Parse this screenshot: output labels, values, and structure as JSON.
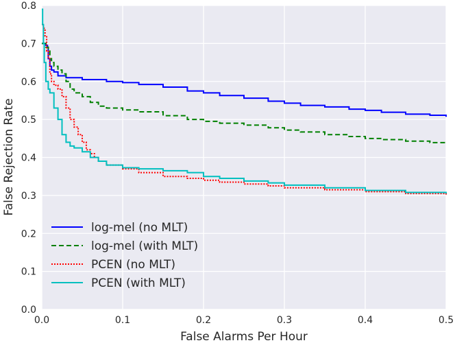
{
  "chart_data": {
    "type": "line",
    "title": "",
    "xlabel": "False Alarms Per Hour",
    "ylabel": "False Rejection Rate",
    "xlim": [
      0.0,
      0.5
    ],
    "ylim": [
      0.0,
      0.8
    ],
    "xticks": [
      "0.0",
      "0.1",
      "0.2",
      "0.3",
      "0.4",
      "0.5"
    ],
    "yticks": [
      "0.0",
      "0.1",
      "0.2",
      "0.3",
      "0.4",
      "0.5",
      "0.6",
      "0.7",
      "0.8"
    ],
    "grid": true,
    "legend_position": "bottom-left",
    "series": [
      {
        "name": "log-mel (no MLT)",
        "color": "#0000ff",
        "dash": "solid",
        "x": [
          0.0,
          0.005,
          0.007,
          0.008,
          0.01,
          0.012,
          0.015,
          0.02,
          0.03,
          0.05,
          0.08,
          0.1,
          0.12,
          0.15,
          0.18,
          0.2,
          0.22,
          0.25,
          0.28,
          0.3,
          0.32,
          0.35,
          0.38,
          0.4,
          0.42,
          0.45,
          0.48,
          0.5
        ],
        "y": [
          0.7,
          0.695,
          0.69,
          0.66,
          0.64,
          0.63,
          0.625,
          0.615,
          0.61,
          0.605,
          0.6,
          0.597,
          0.592,
          0.585,
          0.575,
          0.57,
          0.563,
          0.556,
          0.548,
          0.543,
          0.537,
          0.533,
          0.527,
          0.524,
          0.519,
          0.514,
          0.511,
          0.507
        ]
      },
      {
        "name": "log-mel (with MLT)",
        "color": "#008000",
        "dash": "dashed",
        "x": [
          0.0,
          0.005,
          0.008,
          0.01,
          0.012,
          0.015,
          0.02,
          0.025,
          0.03,
          0.035,
          0.04,
          0.05,
          0.06,
          0.07,
          0.08,
          0.1,
          0.12,
          0.15,
          0.18,
          0.2,
          0.22,
          0.25,
          0.28,
          0.3,
          0.32,
          0.35,
          0.38,
          0.4,
          0.42,
          0.45,
          0.48,
          0.5
        ],
        "y": [
          0.7,
          0.69,
          0.68,
          0.66,
          0.65,
          0.64,
          0.63,
          0.62,
          0.6,
          0.58,
          0.57,
          0.56,
          0.545,
          0.535,
          0.53,
          0.525,
          0.52,
          0.51,
          0.5,
          0.495,
          0.49,
          0.485,
          0.478,
          0.472,
          0.467,
          0.46,
          0.455,
          0.45,
          0.447,
          0.443,
          0.439,
          0.435
        ]
      },
      {
        "name": "PCEN (no MLT)",
        "color": "#ff0000",
        "dash": "dotted",
        "x": [
          0.0,
          0.002,
          0.004,
          0.006,
          0.008,
          0.01,
          0.012,
          0.015,
          0.02,
          0.025,
          0.03,
          0.035,
          0.04,
          0.045,
          0.05,
          0.055,
          0.06,
          0.065,
          0.07,
          0.08,
          0.1,
          0.12,
          0.15,
          0.18,
          0.2,
          0.22,
          0.25,
          0.28,
          0.3,
          0.35,
          0.4,
          0.45,
          0.5
        ],
        "y": [
          0.75,
          0.74,
          0.72,
          0.68,
          0.66,
          0.62,
          0.6,
          0.59,
          0.58,
          0.56,
          0.53,
          0.5,
          0.48,
          0.46,
          0.44,
          0.42,
          0.41,
          0.4,
          0.39,
          0.38,
          0.37,
          0.36,
          0.35,
          0.345,
          0.34,
          0.335,
          0.33,
          0.325,
          0.32,
          0.315,
          0.31,
          0.305,
          0.3
        ]
      },
      {
        "name": "PCEN (with MLT)",
        "color": "#00bfbf",
        "dash": "solid",
        "x": [
          0.0,
          0.001,
          0.002,
          0.003,
          0.005,
          0.008,
          0.01,
          0.015,
          0.02,
          0.025,
          0.03,
          0.035,
          0.04,
          0.05,
          0.06,
          0.07,
          0.08,
          0.1,
          0.12,
          0.15,
          0.18,
          0.2,
          0.22,
          0.25,
          0.28,
          0.3,
          0.35,
          0.4,
          0.45,
          0.5
        ],
        "y": [
          0.79,
          0.75,
          0.7,
          0.65,
          0.6,
          0.58,
          0.57,
          0.53,
          0.5,
          0.46,
          0.44,
          0.43,
          0.425,
          0.415,
          0.4,
          0.39,
          0.38,
          0.373,
          0.37,
          0.365,
          0.36,
          0.35,
          0.345,
          0.338,
          0.333,
          0.327,
          0.32,
          0.313,
          0.308,
          0.305
        ]
      }
    ]
  }
}
